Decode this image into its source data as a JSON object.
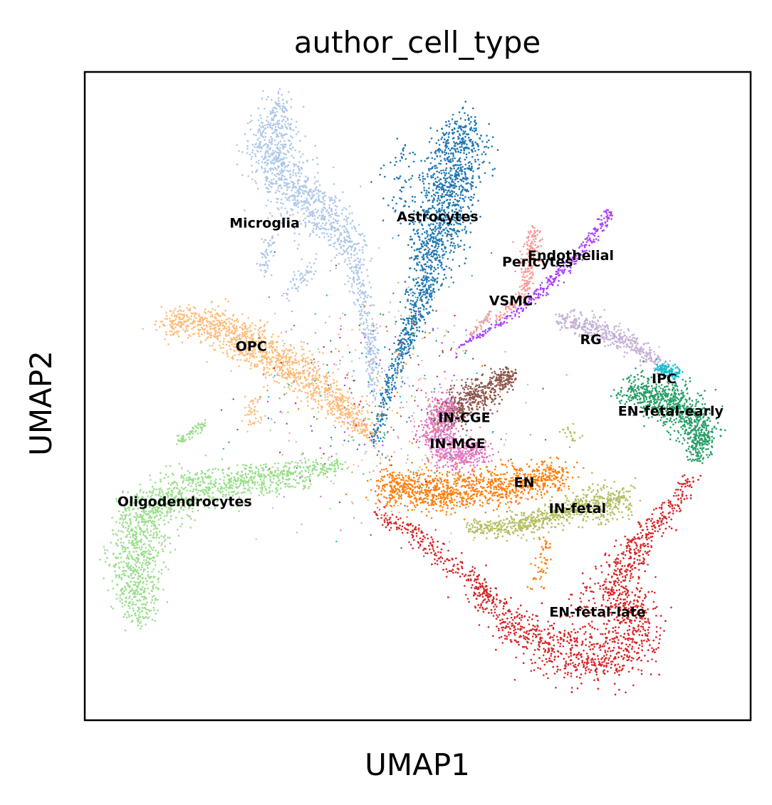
{
  "chart_data": {
    "type": "scatter",
    "title": "author_cell_type",
    "xlabel": "UMAP1",
    "ylabel": "UMAP2",
    "xticks": [],
    "yticks": [],
    "grid": false,
    "legend": "on data",
    "clusters": [
      {
        "label": "Microglia",
        "color": "#aec7e8",
        "x": 0.27,
        "y": 0.76
      },
      {
        "label": "Astrocytes",
        "color": "#1f77b4",
        "x": 0.53,
        "y": 0.77
      },
      {
        "label": "Endothelial",
        "color": "#aa40fc",
        "x": 0.73,
        "y": 0.71
      },
      {
        "label": "Pericytes",
        "color": "#ff9896",
        "x": 0.68,
        "y": 0.7
      },
      {
        "label": "VSMC",
        "color": "#e8a0a0",
        "x": 0.64,
        "y": 0.64
      },
      {
        "label": "RG",
        "color": "#c5b0d5",
        "x": 0.76,
        "y": 0.58
      },
      {
        "label": "OPC",
        "color": "#ffbb78",
        "x": 0.25,
        "y": 0.57
      },
      {
        "label": "IPC",
        "color": "#17becf",
        "x": 0.87,
        "y": 0.52
      },
      {
        "label": "EN-fetal-early",
        "color": "#279e68",
        "x": 0.88,
        "y": 0.47
      },
      {
        "label": "IN-CGE",
        "color": "#8c564b",
        "x": 0.57,
        "y": 0.46
      },
      {
        "label": "IN-MGE",
        "color": "#e377c2",
        "x": 0.56,
        "y": 0.42
      },
      {
        "label": "EN",
        "color": "#ff7f0e",
        "x": 0.66,
        "y": 0.36
      },
      {
        "label": "IN-fetal",
        "color": "#b5bd61",
        "x": 0.74,
        "y": 0.32
      },
      {
        "label": "Oligodendrocytes",
        "color": "#98df8a",
        "x": 0.15,
        "y": 0.33
      },
      {
        "label": "EN-fetal-late",
        "color": "#d62728",
        "x": 0.77,
        "y": 0.16
      }
    ]
  }
}
